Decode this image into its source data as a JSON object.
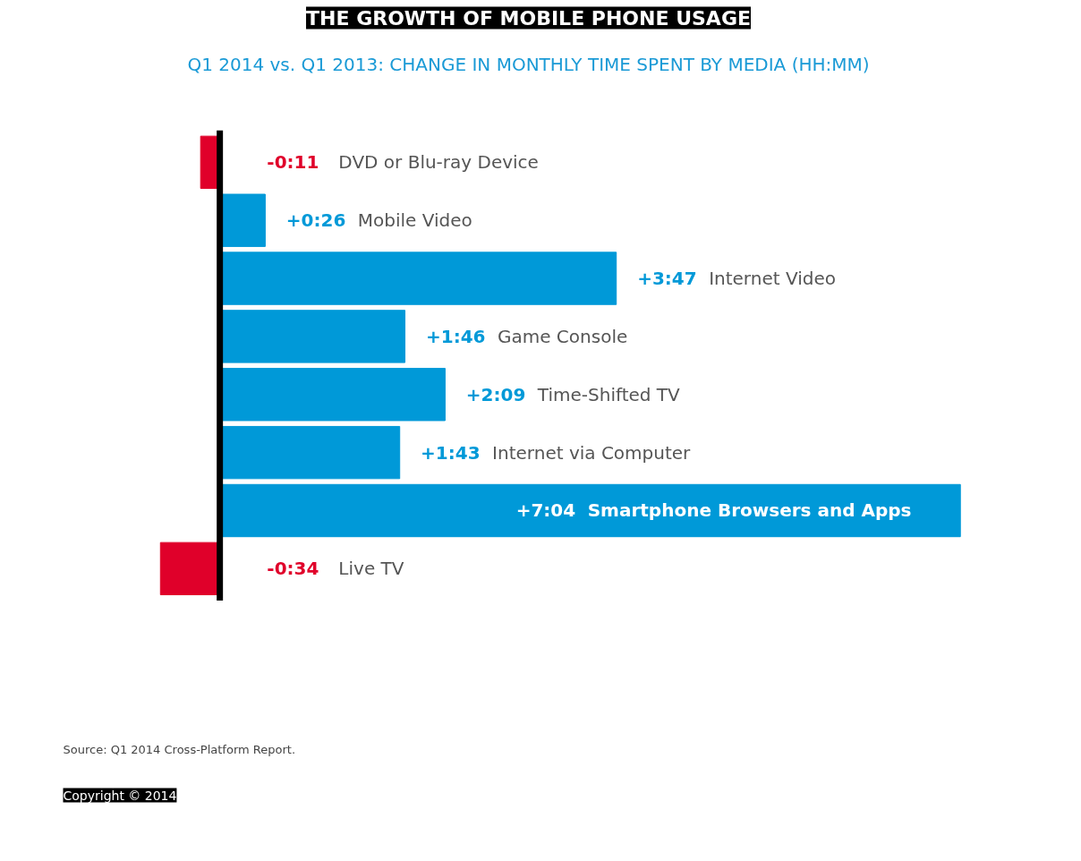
{
  "chart_data": {
    "type": "bar",
    "orientation": "horizontal",
    "title": "THE GROWTH OF MOBILE PHONE USAGE",
    "subtitle": "Q1 2014 vs. Q1 2013: CHANGE IN MONTHLY TIME SPENT BY MEDIA (HH:MM)",
    "categories": [
      "DVD or Blu-ray Device",
      "Mobile Video",
      "Internet Video",
      "Game Console",
      "Time-Shifted TV",
      "Internet via Computer",
      "Smartphone Browsers and Apps",
      "Live TV"
    ],
    "values": [
      -11,
      26,
      227,
      106,
      129,
      103,
      424,
      -34
    ],
    "value_labels": [
      "-0:11",
      "+0:26",
      "+3:47",
      "+1:46",
      "+2:09",
      "+1:43",
      "+7:04",
      "-0:34"
    ],
    "colors": [
      "#e0002a",
      "#0099d8",
      "#0099d8",
      "#0099d8",
      "#0099d8",
      "#0099d8",
      "#0099d8",
      "#e0002a"
    ],
    "annotations": [
      "Source: Q1 2014 Cross-Platform Report.",
      "Copyright © 2014"
    ]
  }
}
